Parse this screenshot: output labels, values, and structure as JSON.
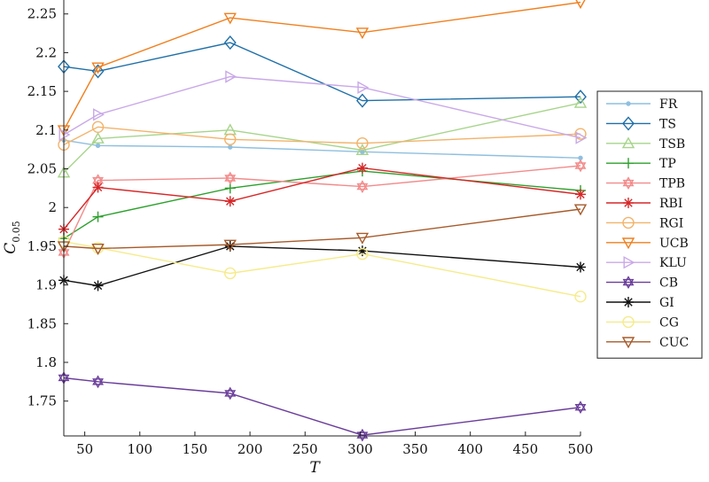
{
  "chart_data": {
    "type": "line",
    "xlabel": "T",
    "ylabel": {
      "main": "C",
      "sub": "0.05"
    },
    "xlim": [
      31,
      500
    ],
    "ylim": [
      1.705,
      2.268
    ],
    "grid": false,
    "legend_position": "right",
    "x_ticks": [
      50,
      100,
      150,
      200,
      250,
      300,
      350,
      400,
      450,
      500
    ],
    "x_tick_labels": [
      "50",
      "100",
      "150",
      "200",
      "250",
      "300",
      "350",
      "400",
      "450",
      "500"
    ],
    "y_ticks": [
      1.75,
      1.8,
      1.85,
      1.9,
      1.95,
      2.0,
      2.05,
      2.1,
      2.15,
      2.2,
      2.25
    ],
    "y_tick_labels": [
      "1.75",
      "1.8",
      "1.85",
      "1.9",
      "1.95",
      "2",
      "2.05",
      "2.1",
      "2.15",
      "2.2",
      "2.25"
    ],
    "x": [
      31,
      62,
      182,
      302,
      500
    ],
    "series": [
      {
        "name": "FR",
        "color": "#8fbfdf",
        "marker": "dot",
        "values": [
          2.087,
          2.08,
          2.078,
          2.072,
          2.064
        ]
      },
      {
        "name": "TS",
        "color": "#1f6fa8",
        "marker": "diamond",
        "values": [
          2.182,
          2.176,
          2.213,
          2.138,
          2.143
        ]
      },
      {
        "name": "TSB",
        "color": "#a6d48a",
        "marker": "triangle",
        "values": [
          2.045,
          2.089,
          2.1,
          2.074,
          2.135
        ]
      },
      {
        "name": "TP",
        "color": "#2ca02c",
        "marker": "plus",
        "values": [
          1.96,
          1.988,
          2.025,
          2.047,
          2.022
        ]
      },
      {
        "name": "TPB",
        "color": "#f28b8b",
        "marker": "hexagram",
        "values": [
          1.942,
          2.035,
          2.038,
          2.027,
          2.054
        ]
      },
      {
        "name": "RBI",
        "color": "#d62728",
        "marker": "asterisk",
        "values": [
          1.972,
          2.026,
          2.008,
          2.051,
          2.017
        ]
      },
      {
        "name": "RGI",
        "color": "#f2b36a",
        "marker": "circle",
        "values": [
          2.081,
          2.104,
          2.088,
          2.083,
          2.095
        ]
      },
      {
        "name": "UCB",
        "color": "#f07f1e",
        "marker": "triangle-down",
        "values": [
          2.1,
          2.181,
          2.245,
          2.226,
          2.265
        ]
      },
      {
        "name": "KLU",
        "color": "#c9a8e8",
        "marker": "triangle-right",
        "values": [
          2.094,
          2.12,
          2.169,
          2.155,
          2.09
        ]
      },
      {
        "name": "CB",
        "color": "#6a3d9a",
        "marker": "hexagram",
        "values": [
          1.78,
          1.775,
          1.76,
          1.706,
          1.742
        ]
      },
      {
        "name": "GI",
        "color": "#111111",
        "marker": "asterisk",
        "values": [
          1.906,
          1.899,
          1.95,
          1.944,
          1.923
        ]
      },
      {
        "name": "CG",
        "color": "#f5eb8a",
        "marker": "circle",
        "values": [
          1.956,
          1.948,
          1.915,
          1.94,
          1.885
        ]
      },
      {
        "name": "CUC",
        "color": "#a65a2a",
        "marker": "triangle-down",
        "values": [
          1.95,
          1.947,
          1.952,
          1.961,
          1.998
        ]
      }
    ]
  }
}
